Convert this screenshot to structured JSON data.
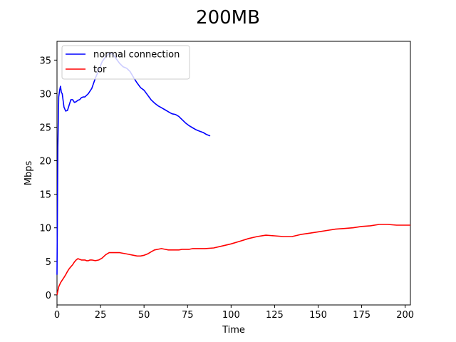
{
  "chart_data": {
    "type": "line",
    "title": "200MB",
    "xlabel": "Time",
    "ylabel": "Mbps",
    "xlim": [
      0,
      203
    ],
    "ylim": [
      -1.5,
      37.8
    ],
    "xticks": [
      0,
      25,
      50,
      75,
      100,
      125,
      150,
      175,
      200
    ],
    "yticks": [
      0,
      5,
      10,
      15,
      20,
      25,
      30,
      35
    ],
    "grid": false,
    "legend_position": "top-left",
    "series": [
      {
        "name": "normal connection",
        "color": "#0000ff",
        "x": [
          0,
          0.5,
          1,
          1.5,
          2,
          2.5,
          3,
          4,
          5,
          6,
          7,
          8,
          9,
          10,
          11,
          12,
          13,
          14,
          15,
          16,
          18,
          20,
          22,
          24,
          26,
          28,
          30,
          32,
          34,
          36,
          38,
          40,
          42,
          44,
          46,
          48,
          50,
          52,
          54,
          56,
          58,
          60,
          62,
          64,
          66,
          68,
          70,
          72,
          74,
          76,
          78,
          80,
          82,
          84,
          86,
          88
        ],
        "y": [
          3,
          22,
          29.5,
          30.5,
          31.1,
          30.2,
          30,
          28,
          27.4,
          27.5,
          28.3,
          29.1,
          29.1,
          28.7,
          28.8,
          29.0,
          29.1,
          29.4,
          29.5,
          29.5,
          30.0,
          30.8,
          32.3,
          33.5,
          34.8,
          35.5,
          36.0,
          35.9,
          35.2,
          34.5,
          34.0,
          33.8,
          33.3,
          32.4,
          31.6,
          30.9,
          30.5,
          29.8,
          29.1,
          28.6,
          28.2,
          27.9,
          27.6,
          27.3,
          27.0,
          26.9,
          26.6,
          26.1,
          25.6,
          25.2,
          24.9,
          24.6,
          24.4,
          24.2,
          23.9,
          23.7
        ]
      },
      {
        "name": "tor",
        "color": "#ff0000",
        "x": [
          0,
          1,
          2,
          3,
          4,
          5,
          6,
          7,
          8,
          9,
          10,
          11,
          12,
          13,
          14,
          15,
          16,
          17,
          18,
          19,
          20,
          22,
          24,
          26,
          28,
          30,
          32,
          34,
          36,
          38,
          40,
          42,
          44,
          46,
          48,
          50,
          52,
          54,
          56,
          58,
          60,
          62,
          64,
          66,
          68,
          70,
          72,
          74,
          76,
          78,
          80,
          85,
          90,
          95,
          100,
          105,
          110,
          115,
          120,
          125,
          130,
          135,
          140,
          145,
          150,
          155,
          160,
          165,
          170,
          175,
          180,
          185,
          190,
          195,
          200,
          203
        ],
        "y": [
          0,
          1.2,
          1.8,
          2.2,
          2.6,
          3.0,
          3.5,
          3.9,
          4.2,
          4.5,
          4.9,
          5.2,
          5.4,
          5.3,
          5.2,
          5.2,
          5.2,
          5.1,
          5.1,
          5.2,
          5.2,
          5.1,
          5.2,
          5.5,
          6.0,
          6.3,
          6.3,
          6.3,
          6.3,
          6.2,
          6.1,
          6.0,
          5.9,
          5.8,
          5.8,
          5.9,
          6.1,
          6.4,
          6.7,
          6.8,
          6.9,
          6.8,
          6.7,
          6.7,
          6.7,
          6.7,
          6.8,
          6.8,
          6.8,
          6.9,
          6.9,
          6.9,
          7.0,
          7.3,
          7.6,
          8.0,
          8.4,
          8.7,
          8.9,
          8.8,
          8.7,
          8.7,
          9.0,
          9.2,
          9.4,
          9.6,
          9.8,
          9.9,
          10.0,
          10.2,
          10.3,
          10.5,
          10.5,
          10.4,
          10.4,
          10.4
        ]
      }
    ]
  }
}
